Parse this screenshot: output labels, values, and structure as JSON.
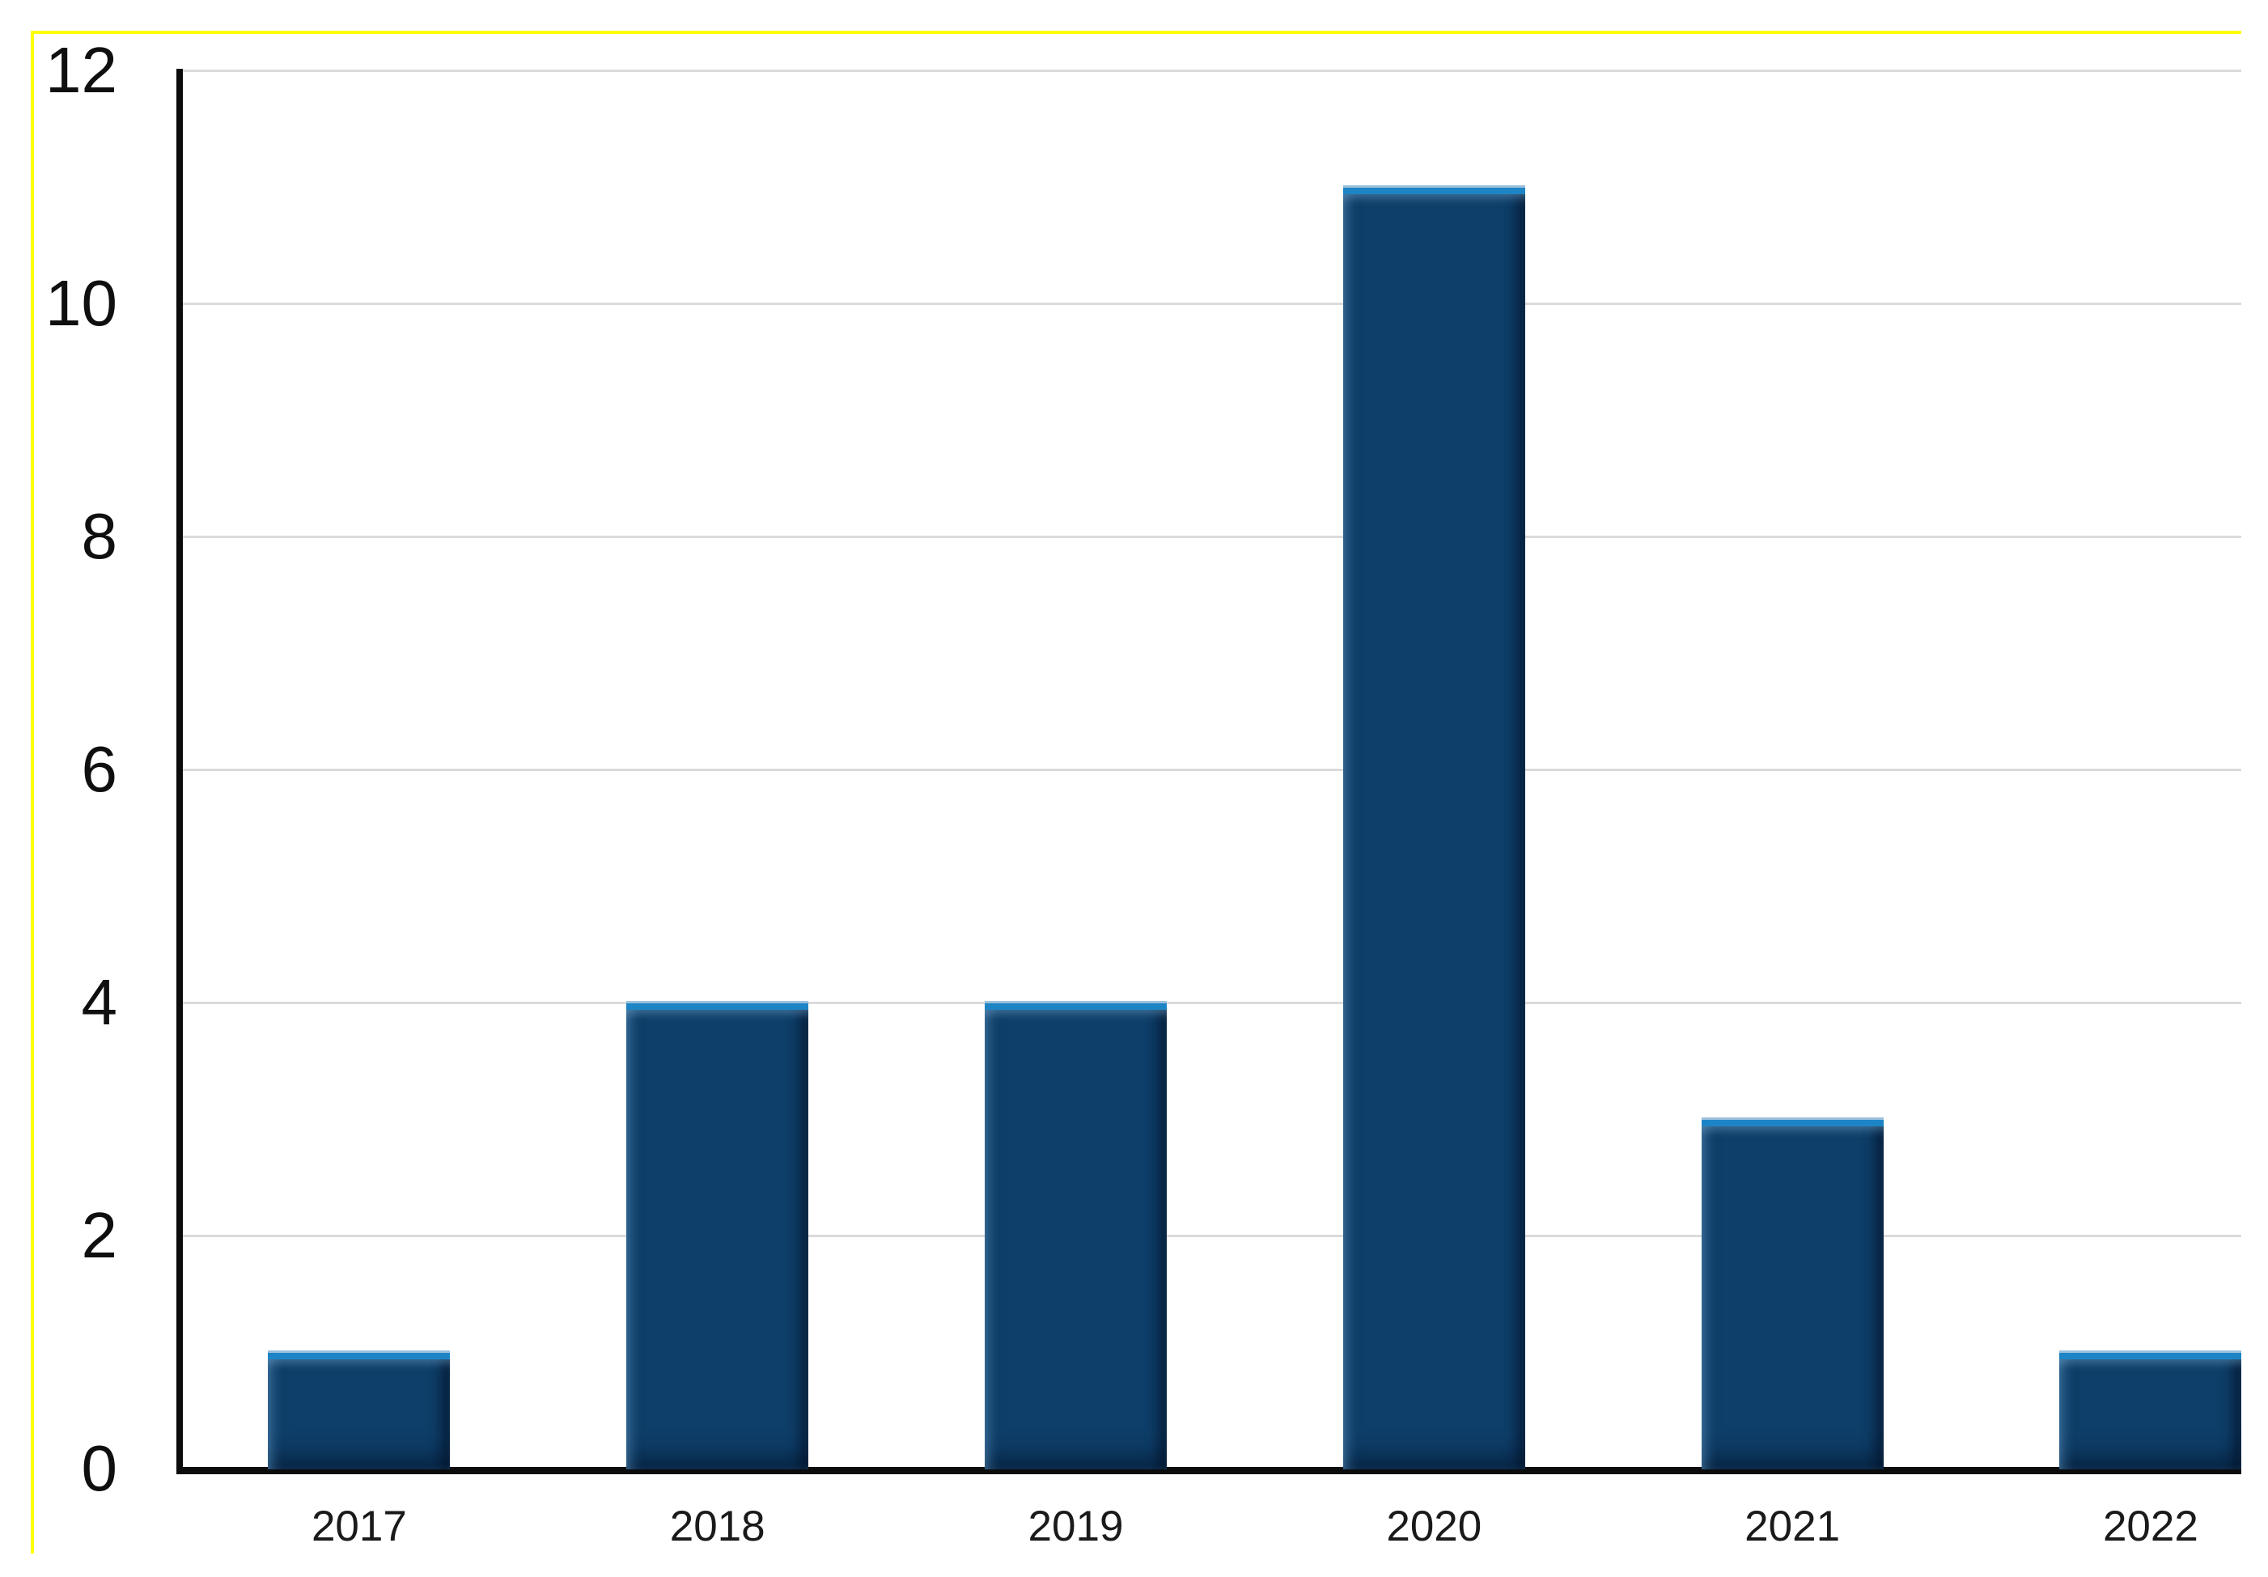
{
  "chart_data": {
    "type": "bar",
    "title": "",
    "categories": [
      "2017",
      "2018",
      "2019",
      "2020",
      "2021",
      "2022"
    ],
    "values": [
      1,
      4,
      4,
      11,
      3,
      1
    ],
    "y_ticks": [
      0,
      2,
      4,
      6,
      8,
      10,
      12
    ],
    "ylim": [
      0,
      12
    ],
    "xlabel": "",
    "ylabel": "",
    "grid": true,
    "legend": "none",
    "colors": {
      "bar_fill": "#0e3f6a",
      "bar_bevel_highlight": "#1d85c6",
      "bar_bevel_outline": "#9cc0dc",
      "gridline": "#dbdbdb",
      "axis": "#0c0c0c",
      "frame_border": "#ffff00",
      "background": "#ffffff",
      "tick_label_text": "#0f0f0f",
      "category_label_text": "#1a1a1a"
    }
  }
}
